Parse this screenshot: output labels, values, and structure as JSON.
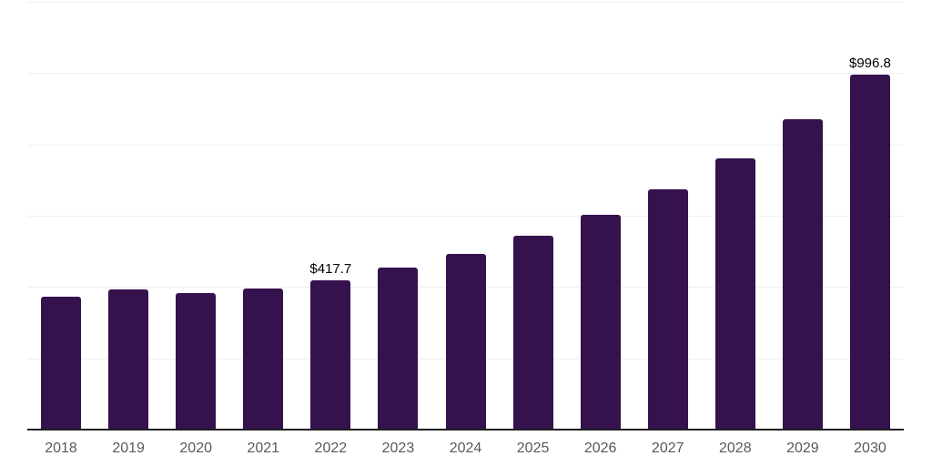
{
  "chart_data": {
    "type": "bar",
    "title": "",
    "xlabel": "",
    "ylabel": "",
    "categories": [
      "2018",
      "2019",
      "2020",
      "2021",
      "2022",
      "2023",
      "2024",
      "2025",
      "2026",
      "2027",
      "2028",
      "2029",
      "2030"
    ],
    "values": [
      372,
      392,
      382,
      396,
      417.7,
      454,
      494,
      545,
      603,
      673,
      760,
      870,
      996.8
    ],
    "point_labels": [
      "",
      "",
      "",
      "",
      "$417.7",
      "",
      "",
      "",
      "",
      "",
      "",
      "",
      "$996.8"
    ],
    "ylim": [
      0,
      1200
    ],
    "gridline_step": 200,
    "grid": "horizontal",
    "legend": "none",
    "colors": {
      "bar": "#35114E",
      "gridline": "#F0F0F0",
      "axis_line": "#1F1F1F",
      "tick_label": "#595959",
      "data_label": "#000000",
      "background": "#FFFFFF"
    }
  }
}
